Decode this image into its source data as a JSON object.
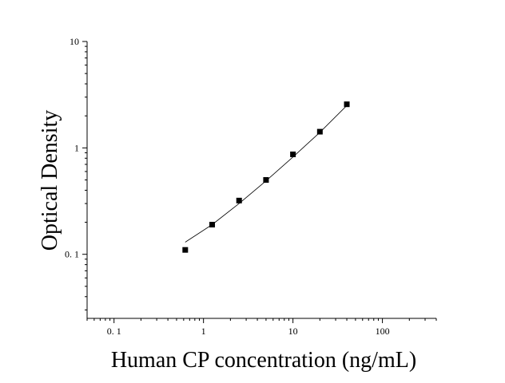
{
  "chart_data": {
    "type": "scatter",
    "xlabel": "Human CP concentration (ng/mL)",
    "ylabel": "Optical Density",
    "x_scale": "log",
    "y_scale": "log",
    "xlim": [
      0.05,
      400
    ],
    "ylim": [
      0.025,
      10
    ],
    "x_ticks": [
      {
        "value": 0.1,
        "label": "0. 1"
      },
      {
        "value": 1,
        "label": "1"
      },
      {
        "value": 10,
        "label": "10"
      },
      {
        "value": 100,
        "label": "100"
      }
    ],
    "y_ticks": [
      {
        "value": 0.1,
        "label": "0. 1"
      },
      {
        "value": 1,
        "label": "1"
      },
      {
        "value": 10,
        "label": "10"
      }
    ],
    "grid": false,
    "series": [
      {
        "marker": "square",
        "color": "#000000",
        "x": [
          0.625,
          1.25,
          2.5,
          5,
          10,
          20,
          40
        ],
        "y": [
          0.11,
          0.19,
          0.32,
          0.5,
          0.87,
          1.42,
          2.57
        ]
      }
    ],
    "fit_curve": {
      "style": "solid",
      "color": "#000000",
      "x": [
        0.625,
        1.25,
        2.5,
        5,
        10,
        20,
        40
      ],
      "y": [
        0.13,
        0.19,
        0.3,
        0.49,
        0.82,
        1.4,
        2.5
      ]
    }
  }
}
